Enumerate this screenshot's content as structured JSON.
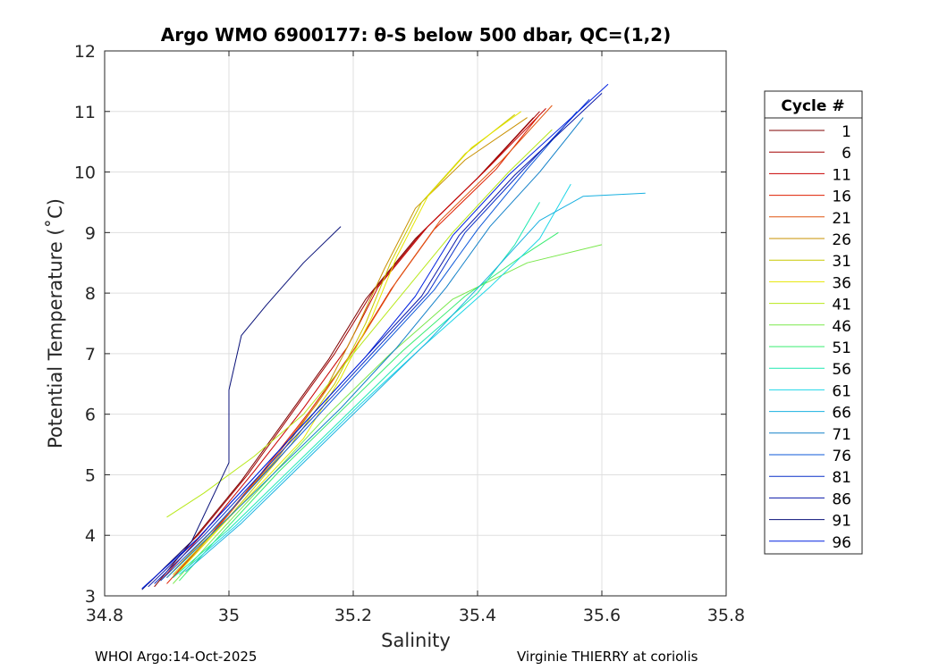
{
  "chart_data": {
    "type": "line",
    "title": "Argo WMO 6900177: θ-S below 500 dbar,  QC=(1,2)",
    "xlabel": "Salinity",
    "ylabel": "Potential Temperature (˚C)",
    "xlim": [
      34.8,
      35.8
    ],
    "ylim": [
      3,
      12
    ],
    "xticks": [
      34.8,
      35,
      35.2,
      35.4,
      35.6,
      35.8
    ],
    "xtick_labels": [
      "34.8",
      "35",
      "35.2",
      "35.4",
      "35.6",
      "35.8"
    ],
    "yticks": [
      3,
      4,
      5,
      6,
      7,
      8,
      9,
      10,
      11,
      12
    ],
    "ytick_labels": [
      "3",
      "4",
      "5",
      "6",
      "7",
      "8",
      "9",
      "10",
      "11",
      "12"
    ],
    "grid": true,
    "legend": {
      "title": "Cycle #",
      "placement": "right",
      "entries": [
        {
          "label": "1",
          "color": "#7f0000"
        },
        {
          "label": "6",
          "color": "#a30000"
        },
        {
          "label": "11",
          "color": "#c80000"
        },
        {
          "label": "16",
          "color": "#de1e00"
        },
        {
          "label": "21",
          "color": "#e05510"
        },
        {
          "label": "26",
          "color": "#c89000"
        },
        {
          "label": "31",
          "color": "#c8c800"
        },
        {
          "label": "36",
          "color": "#e6e600"
        },
        {
          "label": "41",
          "color": "#b8e81a"
        },
        {
          "label": "46",
          "color": "#7ae84c"
        },
        {
          "label": "51",
          "color": "#38ec70"
        },
        {
          "label": "56",
          "color": "#1ee8b0"
        },
        {
          "label": "61",
          "color": "#1ed6e8"
        },
        {
          "label": "66",
          "color": "#18b0e0"
        },
        {
          "label": "71",
          "color": "#1280c8"
        },
        {
          "label": "76",
          "color": "#0d58d8"
        },
        {
          "label": "81",
          "color": "#0a30c8"
        },
        {
          "label": "86",
          "color": "#0a18a8"
        },
        {
          "label": "91",
          "color": "#081078"
        },
        {
          "label": "96",
          "color": "#0020e0"
        }
      ]
    },
    "series": [
      {
        "name": "1",
        "color": "#7f0000",
        "points": [
          [
            34.88,
            3.15
          ],
          [
            34.94,
            3.9
          ],
          [
            35.02,
            4.9
          ],
          [
            35.09,
            5.9
          ],
          [
            35.16,
            6.9
          ],
          [
            35.22,
            7.9
          ],
          [
            35.3,
            8.9
          ],
          [
            35.4,
            9.9
          ],
          [
            35.49,
            10.9
          ]
        ]
      },
      {
        "name": "6",
        "color": "#a30000",
        "points": [
          [
            34.87,
            3.2
          ],
          [
            34.95,
            4.0
          ],
          [
            35.03,
            5.0
          ],
          [
            35.1,
            6.0
          ],
          [
            35.17,
            7.0
          ],
          [
            35.23,
            8.0
          ],
          [
            35.31,
            9.0
          ],
          [
            35.41,
            10.0
          ],
          [
            35.5,
            11.0
          ]
        ]
      },
      {
        "name": "11",
        "color": "#c80000",
        "points": [
          [
            34.89,
            3.25
          ],
          [
            34.96,
            4.05
          ],
          [
            35.04,
            5.05
          ],
          [
            35.12,
            6.1
          ],
          [
            35.19,
            7.1
          ],
          [
            35.24,
            8.1
          ],
          [
            35.32,
            9.1
          ],
          [
            35.42,
            10.1
          ],
          [
            35.51,
            11.05
          ]
        ]
      },
      {
        "name": "16",
        "color": "#de1e00",
        "points": [
          [
            34.9,
            3.2
          ],
          [
            34.97,
            4.0
          ],
          [
            35.05,
            5.0
          ],
          [
            35.13,
            6.05
          ],
          [
            35.2,
            7.05
          ],
          [
            35.26,
            8.05
          ],
          [
            35.33,
            9.05
          ],
          [
            35.43,
            10.05
          ],
          [
            35.5,
            10.95
          ]
        ]
      },
      {
        "name": "21",
        "color": "#e05510",
        "points": [
          [
            34.91,
            3.3
          ],
          [
            34.98,
            4.1
          ],
          [
            35.06,
            5.1
          ],
          [
            35.14,
            6.15
          ],
          [
            35.21,
            7.2
          ],
          [
            35.27,
            8.2
          ],
          [
            35.34,
            9.2
          ],
          [
            35.44,
            10.2
          ],
          [
            35.52,
            11.1
          ]
        ]
      },
      {
        "name": "26",
        "color": "#c89000",
        "points": [
          [
            34.9,
            3.3
          ],
          [
            34.98,
            4.15
          ],
          [
            35.08,
            5.3
          ],
          [
            35.15,
            6.3
          ],
          [
            35.2,
            7.3
          ],
          [
            35.25,
            8.4
          ],
          [
            35.3,
            9.4
          ],
          [
            35.38,
            10.2
          ],
          [
            35.48,
            10.9
          ]
        ]
      },
      {
        "name": "31",
        "color": "#c8c800",
        "points": [
          [
            34.91,
            3.35
          ],
          [
            35.0,
            4.3
          ],
          [
            35.1,
            5.5
          ],
          [
            35.17,
            6.5
          ],
          [
            35.22,
            7.5
          ],
          [
            35.26,
            8.5
          ],
          [
            35.31,
            9.5
          ],
          [
            35.38,
            10.3
          ],
          [
            35.46,
            10.95
          ]
        ]
      },
      {
        "name": "36",
        "color": "#e6e600",
        "points": [
          [
            34.92,
            3.4
          ],
          [
            35.01,
            4.4
          ],
          [
            35.12,
            5.6
          ],
          [
            35.18,
            6.6
          ],
          [
            35.23,
            7.6
          ],
          [
            35.27,
            8.6
          ],
          [
            35.32,
            9.6
          ],
          [
            35.39,
            10.4
          ],
          [
            35.47,
            11.0
          ]
        ]
      },
      {
        "name": "41",
        "color": "#b8e81a",
        "points": [
          [
            34.9,
            4.3
          ],
          [
            34.96,
            4.7
          ],
          [
            35.04,
            5.3
          ],
          [
            35.12,
            6.0
          ],
          [
            35.2,
            7.0
          ],
          [
            35.28,
            8.0
          ],
          [
            35.36,
            9.0
          ],
          [
            35.45,
            10.0
          ],
          [
            35.52,
            10.7
          ]
        ]
      },
      {
        "name": "46",
        "color": "#7ae84c",
        "points": [
          [
            34.91,
            3.2
          ],
          [
            34.98,
            4.0
          ],
          [
            35.07,
            5.0
          ],
          [
            35.16,
            6.0
          ],
          [
            35.26,
            7.0
          ],
          [
            35.36,
            7.9
          ],
          [
            35.48,
            8.5
          ],
          [
            35.6,
            8.8
          ]
        ]
      },
      {
        "name": "51",
        "color": "#38ec70",
        "points": [
          [
            34.92,
            3.25
          ],
          [
            34.99,
            4.05
          ],
          [
            35.08,
            5.05
          ],
          [
            35.18,
            6.05
          ],
          [
            35.28,
            7.05
          ],
          [
            35.38,
            7.95
          ],
          [
            35.47,
            8.6
          ],
          [
            35.53,
            9.0
          ]
        ]
      },
      {
        "name": "56",
        "color": "#1ee8b0",
        "points": [
          [
            34.91,
            3.3
          ],
          [
            35.0,
            4.1
          ],
          [
            35.1,
            5.1
          ],
          [
            35.2,
            6.1
          ],
          [
            35.3,
            7.1
          ],
          [
            35.4,
            8.0
          ],
          [
            35.46,
            8.8
          ],
          [
            35.5,
            9.5
          ]
        ]
      },
      {
        "name": "61",
        "color": "#1ed6e8",
        "points": [
          [
            34.92,
            3.35
          ],
          [
            35.01,
            4.15
          ],
          [
            35.11,
            5.15
          ],
          [
            35.21,
            6.15
          ],
          [
            35.31,
            7.1
          ],
          [
            35.42,
            8.1
          ],
          [
            35.5,
            8.9
          ],
          [
            35.55,
            9.8
          ]
        ]
      },
      {
        "name": "66",
        "color": "#18b0e0",
        "points": [
          [
            34.93,
            3.4
          ],
          [
            35.02,
            4.2
          ],
          [
            35.12,
            5.2
          ],
          [
            35.22,
            6.2
          ],
          [
            35.32,
            7.2
          ],
          [
            35.42,
            8.3
          ],
          [
            35.5,
            9.2
          ],
          [
            35.57,
            9.6
          ],
          [
            35.67,
            9.65
          ]
        ]
      },
      {
        "name": "71",
        "color": "#1280c8",
        "points": [
          [
            34.9,
            3.3
          ],
          [
            34.98,
            4.1
          ],
          [
            35.08,
            5.1
          ],
          [
            35.18,
            6.1
          ],
          [
            35.27,
            7.1
          ],
          [
            35.35,
            8.1
          ],
          [
            35.42,
            9.1
          ],
          [
            35.5,
            10.0
          ],
          [
            35.57,
            10.9
          ]
        ]
      },
      {
        "name": "76",
        "color": "#0d58d8",
        "points": [
          [
            34.89,
            3.25
          ],
          [
            34.97,
            4.05
          ],
          [
            35.06,
            5.05
          ],
          [
            35.15,
            6.05
          ],
          [
            35.24,
            7.05
          ],
          [
            35.33,
            8.05
          ],
          [
            35.4,
            9.05
          ],
          [
            35.48,
            10.05
          ],
          [
            35.56,
            11.0
          ]
        ]
      },
      {
        "name": "81",
        "color": "#0a30c8",
        "points": [
          [
            34.88,
            3.2
          ],
          [
            34.96,
            4.0
          ],
          [
            35.05,
            5.0
          ],
          [
            35.14,
            6.0
          ],
          [
            35.23,
            7.0
          ],
          [
            35.32,
            8.0
          ],
          [
            35.38,
            9.0
          ],
          [
            35.47,
            10.0
          ],
          [
            35.58,
            11.2
          ]
        ]
      },
      {
        "name": "86",
        "color": "#0a18a8",
        "points": [
          [
            34.87,
            3.15
          ],
          [
            34.95,
            3.95
          ],
          [
            35.04,
            4.95
          ],
          [
            35.13,
            5.95
          ],
          [
            35.22,
            6.95
          ],
          [
            35.31,
            7.95
          ],
          [
            35.37,
            8.95
          ],
          [
            35.46,
            9.95
          ],
          [
            35.6,
            11.3
          ]
        ]
      },
      {
        "name": "91",
        "color": "#081078",
        "points": [
          [
            34.86,
            3.1
          ],
          [
            34.94,
            3.9
          ],
          [
            35.0,
            5.2
          ],
          [
            35.0,
            6.4
          ],
          [
            35.02,
            7.3
          ],
          [
            35.06,
            7.8
          ],
          [
            35.12,
            8.5
          ],
          [
            35.18,
            9.1
          ]
        ]
      },
      {
        "name": "96",
        "color": "#0020e0",
        "points": [
          [
            34.86,
            3.12
          ],
          [
            34.95,
            3.95
          ],
          [
            35.04,
            4.95
          ],
          [
            35.13,
            5.95
          ],
          [
            35.22,
            6.95
          ],
          [
            35.3,
            7.95
          ],
          [
            35.36,
            8.95
          ],
          [
            35.45,
            9.95
          ],
          [
            35.61,
            11.45
          ]
        ]
      }
    ]
  },
  "footer": {
    "left": "WHOI Argo:14-Oct-2025",
    "right": "Virginie THIERRY at coriolis"
  }
}
